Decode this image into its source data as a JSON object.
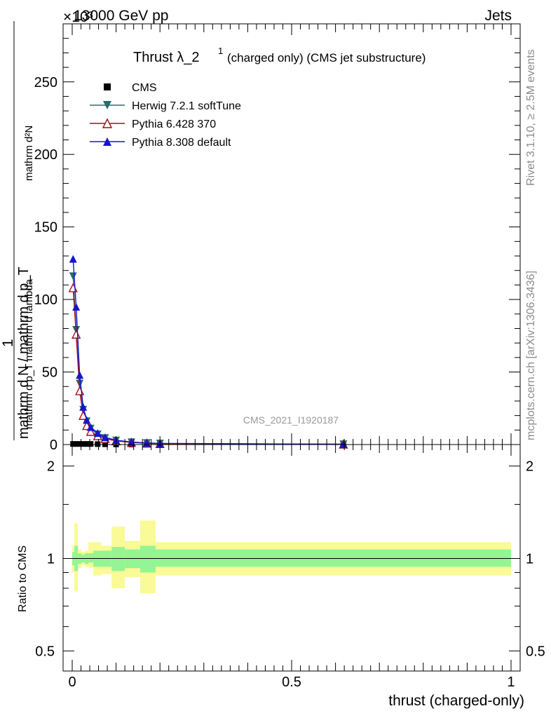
{
  "header": {
    "beam": "13000 GeV pp",
    "process": "Jets",
    "exponent": "×10³"
  },
  "side_labels": {
    "rivet": "Rivet 3.1.10, ≥ 2.5M events",
    "mcplots": "mcplots.cern.ch [arXiv:1306.3436]"
  },
  "watermark": "CMS_2021_I1920187",
  "main_ylabel": {
    "numerator": "mathrm d²N",
    "denominator": "mathrm d p_T mathrm d lambda",
    "prefix_num": "1",
    "prefix_den": "mathrm d N / mathrm d p_T"
  },
  "ratio_ylabel": "Ratio to CMS",
  "xlabel": "thrust (charged-only)",
  "chart_data": [
    {
      "type": "line",
      "title": "Thrust λ_2¹ (charged only) (CMS jet substructure)",
      "title_main": "Thrust λ_2",
      "title_sup": "1",
      "title_rest": "(charged only) (CMS jet substructure)",
      "xlim": [
        0,
        1
      ],
      "ylim": [
        0,
        290
      ],
      "y_scale_note": "×10³",
      "x_ticks": [
        "0",
        "0.5",
        "1"
      ],
      "x_tick_values": [
        0,
        0.5,
        1
      ],
      "y_ticks": [
        "0",
        "50",
        "100",
        "150",
        "200",
        "250"
      ],
      "y_tick_values": [
        0,
        50,
        100,
        150,
        200,
        250
      ],
      "legend_position": "top-left",
      "series": [
        {
          "name": "CMS",
          "color": "#000000",
          "marker": "square",
          "x": [
            0.002,
            0.009,
            0.017,
            0.025,
            0.033,
            0.042,
            0.058,
            0.075,
            0.1,
            0.135,
            0.17,
            0.2,
            0.618
          ],
          "y": [
            0.4,
            0.4,
            0.4,
            0.4,
            0.4,
            0.4,
            0.3,
            0.2,
            0.1,
            0.05,
            0.02,
            0.01,
            0
          ]
        },
        {
          "name": "Herwig 7.2.1 softTune",
          "color": "#2b6b6b",
          "marker": "triangle-down",
          "x": [
            0.002,
            0.009,
            0.017,
            0.025,
            0.033,
            0.042,
            0.058,
            0.075,
            0.1,
            0.135,
            0.17,
            0.2,
            0.618
          ],
          "y": [
            116,
            79,
            42,
            24,
            16,
            11,
            7,
            4.5,
            2.8,
            1.6,
            1.0,
            0.7,
            0.2
          ]
        },
        {
          "name": "Pythia 6.428 370",
          "color": "#a3121b",
          "marker": "triangle-up-open",
          "x": [
            0.002,
            0.009,
            0.017,
            0.025,
            0.033,
            0.042,
            0.058,
            0.075,
            0.1,
            0.135,
            0.17,
            0.2,
            0.618
          ],
          "y": [
            108,
            76,
            37,
            20,
            13,
            9,
            6,
            4,
            2.5,
            1.4,
            0.9,
            0.6,
            0.2
          ]
        },
        {
          "name": "Pythia 8.308 default",
          "color": "#1515d0",
          "marker": "triangle-up",
          "x": [
            0.002,
            0.009,
            0.017,
            0.025,
            0.033,
            0.042,
            0.058,
            0.075,
            0.1,
            0.135,
            0.17,
            0.2,
            0.618
          ],
          "y": [
            128,
            95,
            48,
            26,
            17,
            12,
            8,
            5,
            3,
            1.7,
            1.1,
            0.8,
            0.2
          ]
        }
      ]
    },
    {
      "type": "area",
      "title": "",
      "ylabel": "Ratio to CMS",
      "xlim": [
        0,
        1
      ],
      "ylim": [
        0.43,
        2.35
      ],
      "log_scale_y": true,
      "x_ticks": [
        "0",
        "0.5",
        "1"
      ],
      "x_tick_values": [
        0,
        0.5,
        1
      ],
      "y_ticks": [
        "0.5",
        "1",
        "2"
      ],
      "y_tick_values": [
        0.5,
        1,
        2
      ],
      "reference_line": 1,
      "bins": [
        0,
        0.005,
        0.013,
        0.021,
        0.029,
        0.037,
        0.048,
        0.067,
        0.09,
        0.12,
        0.155,
        0.19,
        1.0
      ],
      "bands": [
        {
          "name": "stat",
          "color": "#94f594",
          "low": [
            0.95,
            0.91,
            0.96,
            0.97,
            0.96,
            0.97,
            0.94,
            0.94,
            0.91,
            0.93,
            0.9,
            0.94
          ],
          "high": [
            1.05,
            1.1,
            1.04,
            1.03,
            1.04,
            1.04,
            1.06,
            1.06,
            1.09,
            1.07,
            1.1,
            1.07
          ]
        },
        {
          "name": "total",
          "color": "#fafa96",
          "low": [
            0.9,
            0.78,
            0.93,
            0.95,
            0.94,
            0.93,
            0.88,
            0.89,
            0.8,
            0.87,
            0.77,
            0.88
          ],
          "high": [
            1.1,
            1.3,
            1.07,
            1.05,
            1.06,
            1.13,
            1.13,
            1.1,
            1.27,
            1.14,
            1.33,
            1.13
          ]
        }
      ]
    }
  ]
}
